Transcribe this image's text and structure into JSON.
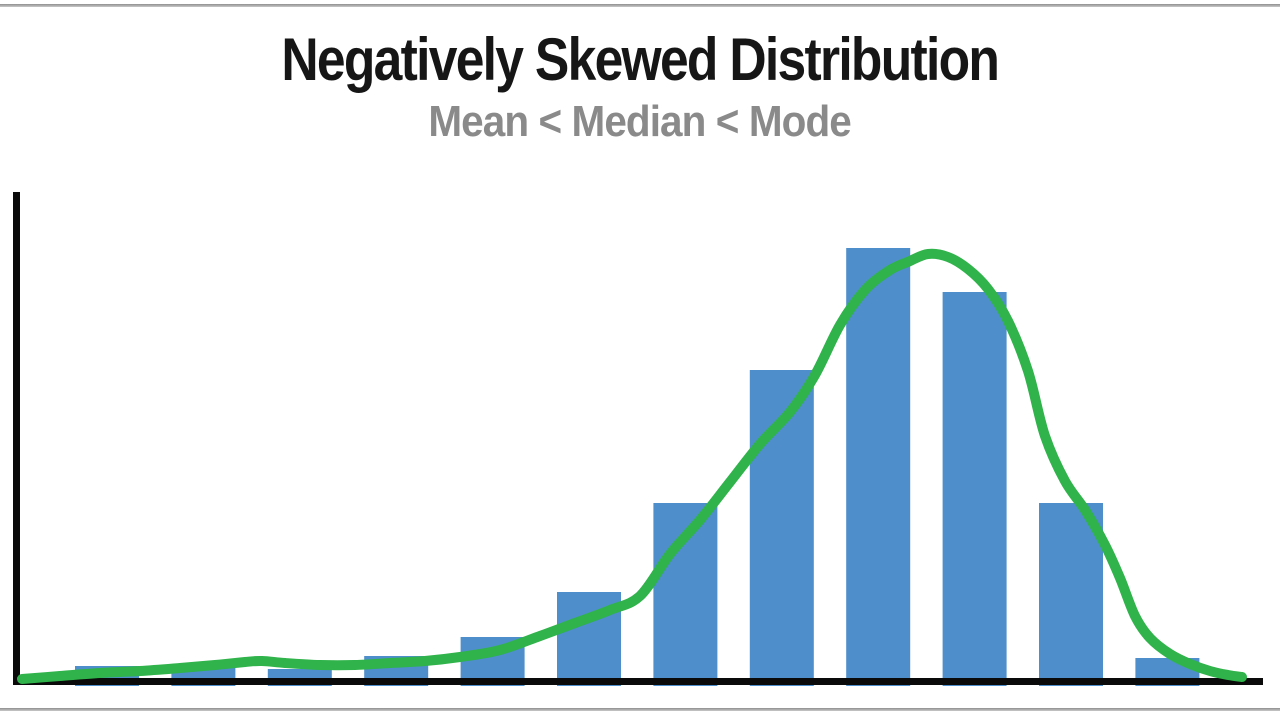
{
  "slide": {
    "title": "Negatively Skewed Distribution",
    "subtitle": "Mean < Median < Mode",
    "title_color": "#161616",
    "subtitle_color": "#8a8a8a",
    "background_color": "#ffffff",
    "border_line_color": "#9b9b9b"
  },
  "chart_data": {
    "type": "bar",
    "variant": "histogram-with-density-curve",
    "title": "Negatively Skewed Distribution",
    "subtitle": "Mean < Median < Mode",
    "xlabel": "",
    "ylabel": "",
    "legend": "none",
    "grid": "off",
    "tick_labels_visible": false,
    "units": "relative frequency (axes unlabeled)",
    "skew_direction": "negative (long left tail, mode near right)",
    "bar_count": 12,
    "values": [
      12,
      12,
      9,
      22,
      41,
      86,
      175,
      308,
      430,
      386,
      175,
      20
    ],
    "ylim": [
      0,
      486
    ],
    "bar_color": "#4E8ECB",
    "curve_color": "#2FB34A",
    "axis_color": "#0a0a0a",
    "curve_points": [
      [
        22,
        1
      ],
      [
        60,
        4
      ],
      [
        100,
        7
      ],
      [
        140,
        9
      ],
      [
        180,
        12
      ],
      [
        215,
        15
      ],
      [
        245,
        18
      ],
      [
        262,
        19
      ],
      [
        285,
        17
      ],
      [
        320,
        15
      ],
      [
        355,
        15
      ],
      [
        390,
        17
      ],
      [
        425,
        19
      ],
      [
        460,
        23
      ],
      [
        500,
        30
      ],
      [
        540,
        44
      ],
      [
        575,
        57
      ],
      [
        610,
        70
      ],
      [
        640,
        84
      ],
      [
        670,
        126
      ],
      [
        700,
        160
      ],
      [
        730,
        198
      ],
      [
        760,
        236
      ],
      [
        790,
        268
      ],
      [
        815,
        305
      ],
      [
        840,
        355
      ],
      [
        865,
        390
      ],
      [
        890,
        410
      ],
      [
        910,
        419
      ],
      [
        928,
        426
      ],
      [
        948,
        423
      ],
      [
        968,
        411
      ],
      [
        988,
        391
      ],
      [
        1008,
        359
      ],
      [
        1028,
        309
      ],
      [
        1045,
        244
      ],
      [
        1065,
        199
      ],
      [
        1085,
        170
      ],
      [
        1105,
        135
      ],
      [
        1120,
        102
      ],
      [
        1135,
        64
      ],
      [
        1150,
        42
      ],
      [
        1170,
        26
      ],
      [
        1190,
        16
      ],
      [
        1210,
        9
      ],
      [
        1228,
        5
      ],
      [
        1242,
        3
      ]
    ]
  }
}
